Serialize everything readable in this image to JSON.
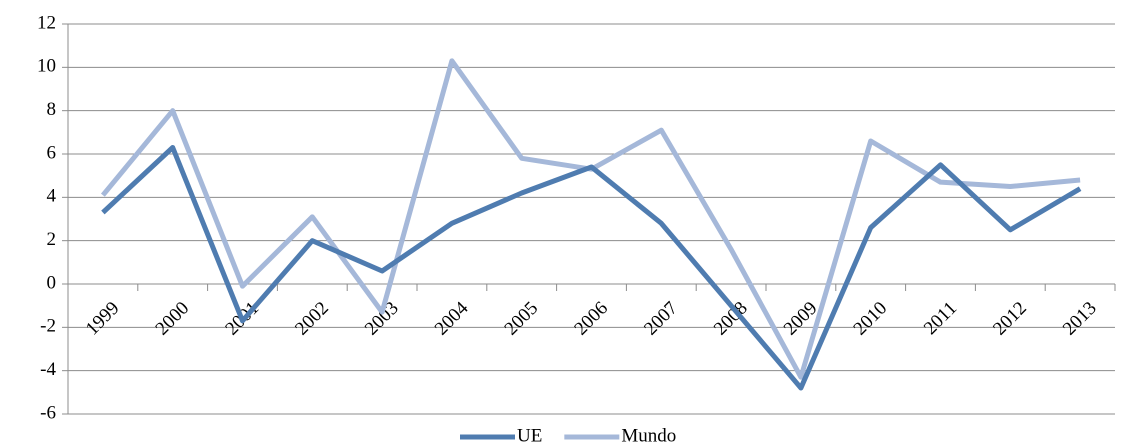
{
  "chart_data": {
    "type": "line",
    "categories": [
      "1999",
      "2000",
      "2001",
      "2002",
      "2003",
      "2004",
      "2005",
      "2006",
      "2007",
      "2008",
      "2009",
      "2010",
      "2011",
      "2012",
      "2013"
    ],
    "series": [
      {
        "name": "UE",
        "color": "#4f7cb0",
        "values": [
          3.3,
          6.3,
          -1.7,
          2.0,
          0.6,
          2.8,
          4.2,
          5.4,
          2.8,
          -1.0,
          -4.8,
          2.6,
          5.5,
          2.5,
          4.4
        ]
      },
      {
        "name": "Mundo",
        "color": "#a5b8d9",
        "values": [
          4.1,
          8.0,
          -0.1,
          3.1,
          -1.3,
          10.3,
          5.8,
          5.3,
          7.1,
          1.6,
          -4.3,
          6.6,
          4.7,
          4.5,
          4.8
        ]
      }
    ],
    "ylim": [
      -6,
      12
    ],
    "yticks": [
      -6,
      -4,
      -2,
      0,
      2,
      4,
      6,
      8,
      10,
      12
    ],
    "grid": true,
    "legend": "bottom"
  }
}
